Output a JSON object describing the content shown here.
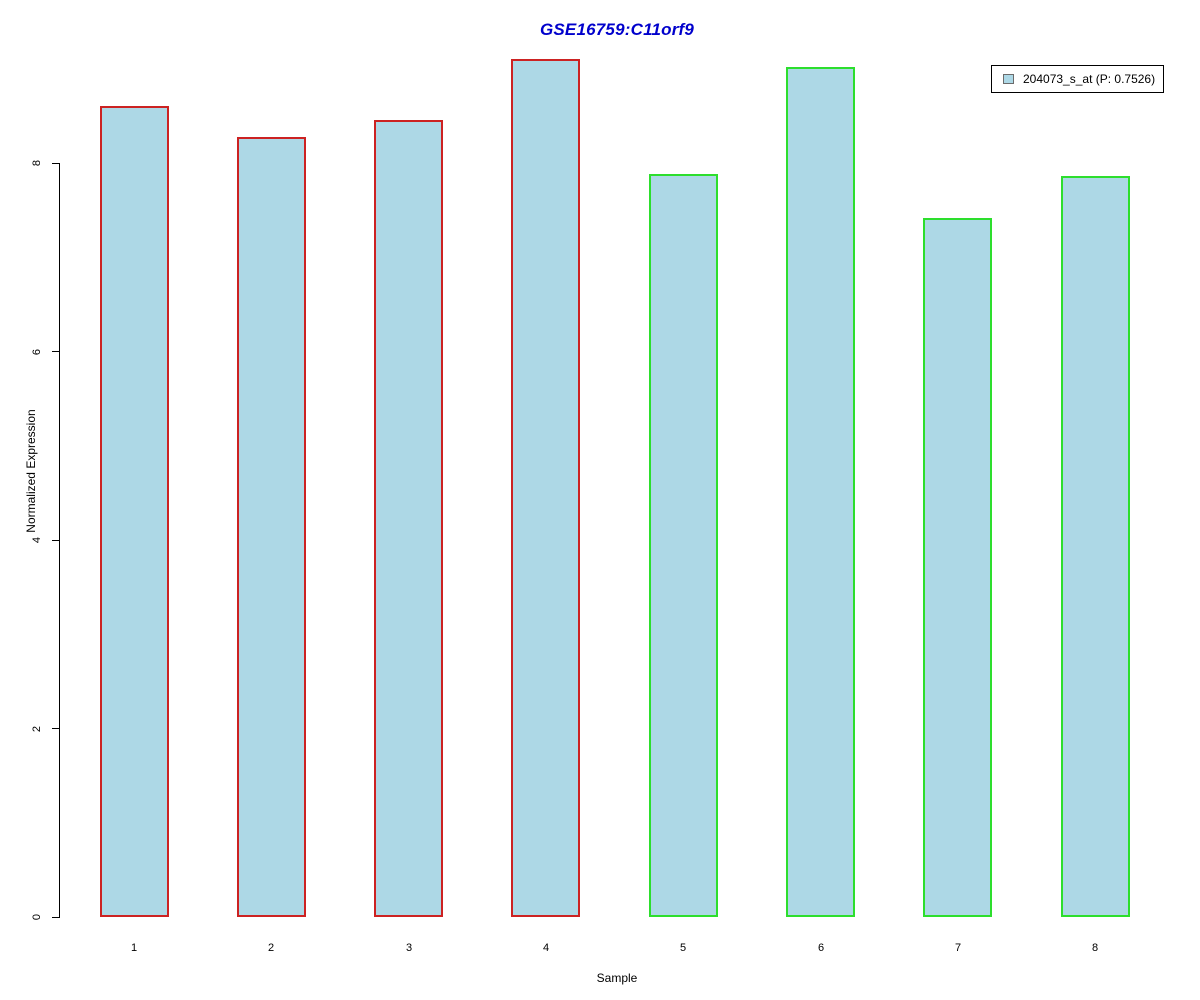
{
  "title": "GSE16759:C11orf9",
  "title_color": "#0000cc",
  "chart_data": {
    "type": "bar",
    "title": "GSE16759:C11orf9",
    "xlabel": "Sample",
    "ylabel": "Normalized Expression",
    "categories": [
      "1",
      "2",
      "3",
      "4",
      "5",
      "6",
      "7",
      "8"
    ],
    "values": [
      8.6,
      8.28,
      8.46,
      9.1,
      7.88,
      9.02,
      7.42,
      7.86
    ],
    "ylim": [
      0,
      9.15
    ],
    "yticks": [
      0,
      2,
      4,
      6,
      8
    ],
    "grid": false,
    "bar_fill": "#add8e6",
    "bar_border_colors": [
      "#cc2222",
      "#cc2222",
      "#cc2222",
      "#cc2222",
      "#2dde2d",
      "#2dde2d",
      "#2dde2d",
      "#2dde2d"
    ],
    "group_colors": {
      "group1": "#cc2222",
      "group2": "#2dde2d"
    },
    "legend": {
      "position": "top-right",
      "label": "204073_s_at (P: 0.7526)",
      "swatch_fill": "#add8e6",
      "swatch_border": "#6b6b6b"
    }
  }
}
